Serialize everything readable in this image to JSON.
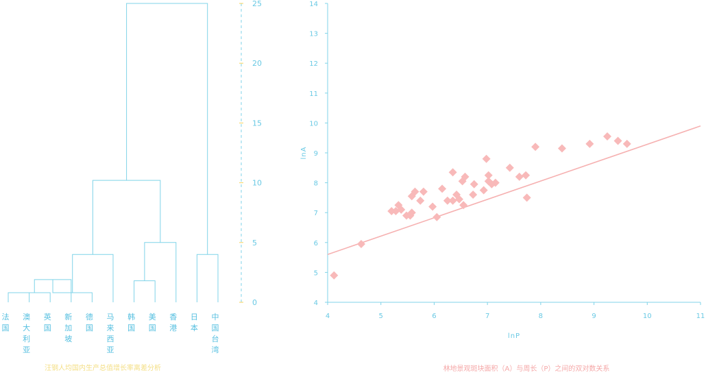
{
  "colors": {
    "dendrogram_line": "#7fd3e8",
    "dendrogram_tick": "#f4d35e",
    "dendrogram_caption": "#f4df86",
    "scatter_point": "#f8b9b9",
    "scatter_trend": "#f6b1b1",
    "scatter_caption": "#f5a8a8"
  },
  "chart_data": [
    {
      "type": "dendrogram",
      "title": "汪钢人均国内生产总值增长率离差分析",
      "ylim": [
        0,
        25
      ],
      "yticks": [
        0,
        5,
        10,
        15,
        20,
        25
      ],
      "leaves": [
        {
          "label": "法国",
          "chars": [
            "法",
            "国"
          ]
        },
        {
          "label": "澳大利亚",
          "chars": [
            "澳",
            "大",
            "利",
            "亚"
          ]
        },
        {
          "label": "英国",
          "chars": [
            "英",
            "国"
          ]
        },
        {
          "label": "新加坡",
          "chars": [
            "新",
            "加",
            "坡"
          ]
        },
        {
          "label": "德国",
          "chars": [
            "德",
            "国"
          ]
        },
        {
          "label": "马来西亚",
          "chars": [
            "马",
            "来",
            "西",
            "亚"
          ]
        },
        {
          "label": "韩国",
          "chars": [
            "韩",
            "国"
          ]
        },
        {
          "label": "美国",
          "chars": [
            "美",
            "国"
          ]
        },
        {
          "label": "香港",
          "chars": [
            "香",
            "港"
          ]
        },
        {
          "label": "日本",
          "chars": [
            "日",
            "本"
          ]
        },
        {
          "label": "中国台湾",
          "chars": [
            "中",
            "国",
            "台",
            "湾"
          ]
        }
      ],
      "merges": [
        {
          "left": 0,
          "right": 1,
          "height": 0.8
        },
        {
          "left": 11,
          "right": 2,
          "height": 0.8
        },
        {
          "left": 12,
          "right": 3,
          "height": 1.9
        },
        {
          "left": 4,
          "right": 13,
          "height": 0.8
        },
        {
          "left": 14,
          "right": 5,
          "height": 4.0
        },
        {
          "left": 6,
          "right": 7,
          "height": 1.8
        },
        {
          "left": 16,
          "right": 8,
          "height": 5.0
        },
        {
          "left": 15,
          "right": 17,
          "height": 10.2
        },
        {
          "left": 9,
          "right": 10,
          "height": 4.0
        },
        {
          "left": 18,
          "right": 19,
          "height": 25.0
        }
      ]
    },
    {
      "type": "scatter",
      "title": "林地景观斑块面积（A）与周长（P）之间的双对数关系",
      "xlabel": "lnP",
      "ylabel": "lnA",
      "xlim": [
        4,
        11
      ],
      "ylim": [
        4,
        14
      ],
      "xticks": [
        4,
        5,
        6,
        7,
        8,
        9,
        10,
        11
      ],
      "yticks": [
        4,
        5,
        6,
        7,
        8,
        9,
        10,
        11,
        12,
        13,
        14
      ],
      "grid": false,
      "points": [
        {
          "x": 4.12,
          "y": 4.9
        },
        {
          "x": 4.63,
          "y": 5.95
        },
        {
          "x": 5.2,
          "y": 7.05
        },
        {
          "x": 5.28,
          "y": 7.05
        },
        {
          "x": 5.33,
          "y": 7.25
        },
        {
          "x": 5.38,
          "y": 7.1
        },
        {
          "x": 5.48,
          "y": 6.9
        },
        {
          "x": 5.55,
          "y": 6.9
        },
        {
          "x": 5.58,
          "y": 7.0
        },
        {
          "x": 5.58,
          "y": 7.55
        },
        {
          "x": 5.64,
          "y": 7.7
        },
        {
          "x": 5.74,
          "y": 7.4
        },
        {
          "x": 5.8,
          "y": 7.7
        },
        {
          "x": 5.97,
          "y": 7.2
        },
        {
          "x": 6.05,
          "y": 6.85
        },
        {
          "x": 6.15,
          "y": 7.8
        },
        {
          "x": 6.25,
          "y": 7.4
        },
        {
          "x": 6.35,
          "y": 7.4
        },
        {
          "x": 6.35,
          "y": 8.35
        },
        {
          "x": 6.42,
          "y": 7.6
        },
        {
          "x": 6.47,
          "y": 7.45
        },
        {
          "x": 6.53,
          "y": 8.05
        },
        {
          "x": 6.55,
          "y": 7.25
        },
        {
          "x": 6.58,
          "y": 8.2
        },
        {
          "x": 6.73,
          "y": 7.6
        },
        {
          "x": 6.75,
          "y": 7.95
        },
        {
          "x": 6.93,
          "y": 7.75
        },
        {
          "x": 6.98,
          "y": 8.8
        },
        {
          "x": 7.02,
          "y": 8.25
        },
        {
          "x": 7.02,
          "y": 8.05
        },
        {
          "x": 7.08,
          "y": 7.95
        },
        {
          "x": 7.15,
          "y": 8.0
        },
        {
          "x": 7.42,
          "y": 8.5
        },
        {
          "x": 7.6,
          "y": 8.2
        },
        {
          "x": 7.72,
          "y": 8.25
        },
        {
          "x": 7.74,
          "y": 7.5
        },
        {
          "x": 7.9,
          "y": 9.2
        },
        {
          "x": 8.4,
          "y": 9.15
        },
        {
          "x": 8.92,
          "y": 9.3
        },
        {
          "x": 9.25,
          "y": 9.55
        },
        {
          "x": 9.45,
          "y": 9.4
        },
        {
          "x": 9.62,
          "y": 9.3
        }
      ],
      "trendline": {
        "x": [
          4.0,
          11.0
        ],
        "y": [
          5.6,
          9.9
        ]
      }
    }
  ]
}
